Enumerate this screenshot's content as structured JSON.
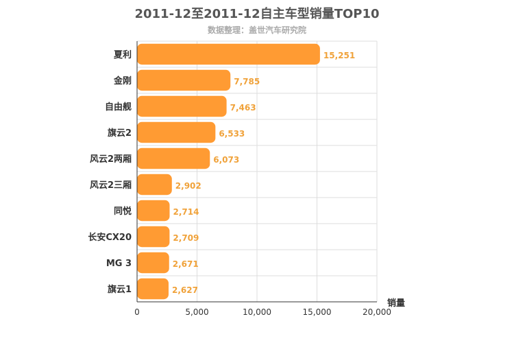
{
  "chart_data": {
    "type": "bar",
    "orientation": "horizontal",
    "title": "2011-12至2011-12自主车型销量TOP10",
    "subtitle": "数据整理：盖世汽车研究院",
    "categories": [
      "夏利",
      "金刚",
      "自由舰",
      "旗云2",
      "风云2两厢",
      "风云2三厢",
      "同悦",
      "长安CX20",
      "MG 3",
      "旗云1"
    ],
    "series": [
      {
        "values": [
          15251,
          7785,
          7463,
          6533,
          6073,
          2902,
          2714,
          2709,
          2671,
          2627
        ]
      }
    ],
    "data_labels": [
      "15,251",
      "7,785",
      "7,463",
      "6,533",
      "6,073",
      "2,902",
      "2,714",
      "2,709",
      "2,671",
      "2,627"
    ],
    "xlabel": "销量",
    "xlim": [
      0,
      20000
    ],
    "x_ticks": [
      0,
      5000,
      10000,
      15000,
      20000
    ],
    "x_tick_labels": [
      "0",
      "5,000",
      "10,000",
      "15,000",
      "20,000"
    ],
    "grid": true,
    "bar_color": "#ff9b33",
    "label_color": "#f0a23a"
  }
}
